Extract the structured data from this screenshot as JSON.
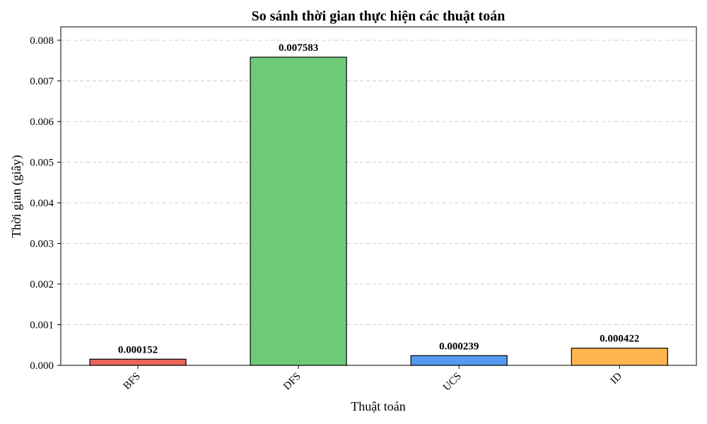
{
  "chart_data": {
    "type": "bar",
    "title": "So sánh thời gian thực hiện các thuật toán",
    "xlabel": "Thuật toán",
    "ylabel": "Thời gian (giây)",
    "categories": [
      "BFS",
      "DFS",
      "UCS",
      "ID"
    ],
    "values": [
      0.000152,
      0.007583,
      0.000239,
      0.000422
    ],
    "data_labels": [
      "0.000152",
      "0.007583",
      "0.000239",
      "0.000422"
    ],
    "colors": [
      "#e8655a",
      "#6dcb78",
      "#5599f0",
      "#ffb54f"
    ],
    "ylim": [
      0,
      0.00833
    ],
    "yticks": [
      0,
      0.001,
      0.002,
      0.003,
      0.004,
      0.005,
      0.006,
      0.007,
      0.008
    ],
    "ytick_labels": [
      "0.000",
      "0.001",
      "0.002",
      "0.003",
      "0.004",
      "0.005",
      "0.006",
      "0.007",
      "0.008"
    ],
    "grid": "y-dashed",
    "legend": "none"
  }
}
